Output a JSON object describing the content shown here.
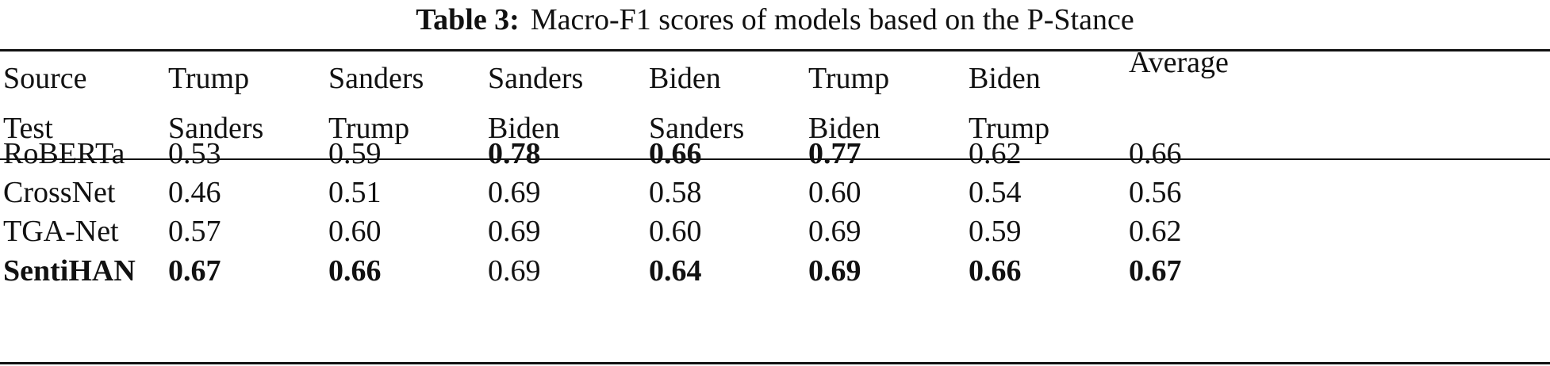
{
  "caption": {
    "label": "Table 3:",
    "text": "Macro-F1 scores of models based on the P-Stance"
  },
  "header": {
    "row_label": {
      "line1": "Source",
      "line2": "Test"
    },
    "columns": [
      {
        "line1": "Trump",
        "line2": "Sanders"
      },
      {
        "line1": "Sanders",
        "line2": "Trump"
      },
      {
        "line1": "Sanders",
        "line2": "Biden"
      },
      {
        "line1": "Biden",
        "line2": "Sanders"
      },
      {
        "line1": "Trump",
        "line2": "Biden"
      },
      {
        "line1": "Biden",
        "line2": "Trump"
      },
      {
        "line1": "Average",
        "line2": ""
      }
    ]
  },
  "rows": [
    {
      "model": "RoBERTa",
      "model_bold": false,
      "values": [
        "0.53",
        "0.59",
        "0.78",
        "0.66",
        "0.77",
        "0.62",
        "0.66"
      ],
      "bold": [
        false,
        false,
        true,
        true,
        true,
        false,
        false
      ]
    },
    {
      "model": "CrossNet",
      "model_bold": false,
      "values": [
        "0.46",
        "0.51",
        "0.69",
        "0.58",
        "0.60",
        "0.54",
        "0.56"
      ],
      "bold": [
        false,
        false,
        false,
        false,
        false,
        false,
        false
      ]
    },
    {
      "model": "TGA-Net",
      "model_bold": false,
      "values": [
        "0.57",
        "0.60",
        "0.69",
        "0.60",
        "0.69",
        "0.59",
        "0.62"
      ],
      "bold": [
        false,
        false,
        false,
        false,
        false,
        false,
        false
      ]
    },
    {
      "model": "SentiHAN",
      "model_bold": true,
      "values": [
        "0.67",
        "0.66",
        "0.69",
        "0.64",
        "0.69",
        "0.66",
        "0.67"
      ],
      "bold": [
        true,
        true,
        false,
        true,
        true,
        true,
        true
      ]
    }
  ]
}
